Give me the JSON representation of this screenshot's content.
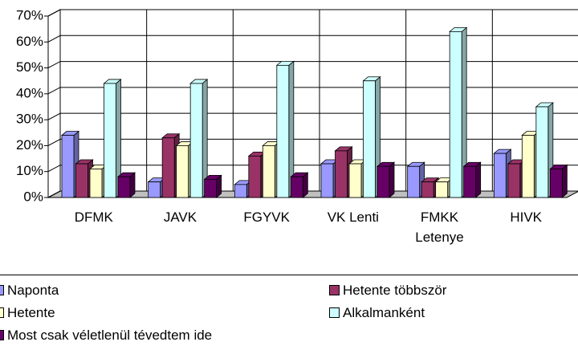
{
  "chart_data": {
    "type": "bar",
    "categories": [
      "DFMK",
      "JAVK",
      "FGYVK",
      "VK Lenti",
      "FMKK Letenye",
      "HIVK"
    ],
    "series": [
      {
        "name": "Naponta",
        "color": "#9999ff",
        "values": [
          24,
          6,
          5,
          13,
          12,
          17
        ]
      },
      {
        "name": "Hetente többször",
        "color": "#993366",
        "values": [
          13,
          23,
          16,
          18,
          6,
          13
        ]
      },
      {
        "name": "Hetente",
        "color": "#ffffcc",
        "values": [
          11,
          20,
          20,
          13,
          6,
          24
        ]
      },
      {
        "name": "Alkalmanként",
        "color": "#ccffff",
        "values": [
          44,
          44,
          51,
          45,
          64,
          35
        ]
      },
      {
        "name": "Most csak véletlenül tévedtem ide",
        "color": "#660066",
        "values": [
          8,
          7,
          8,
          12,
          12,
          11
        ]
      }
    ],
    "ylim": [
      0,
      70
    ],
    "yticks": [
      {
        "value": 0,
        "label": "0%"
      },
      {
        "value": 10,
        "label": "10%"
      },
      {
        "value": 20,
        "label": "20%"
      },
      {
        "value": 30,
        "label": "30%"
      },
      {
        "value": 40,
        "label": "40%"
      },
      {
        "value": 50,
        "label": "50%"
      },
      {
        "value": 60,
        "label": "60%"
      },
      {
        "value": 70,
        "label": "70%"
      }
    ],
    "grid": true
  }
}
